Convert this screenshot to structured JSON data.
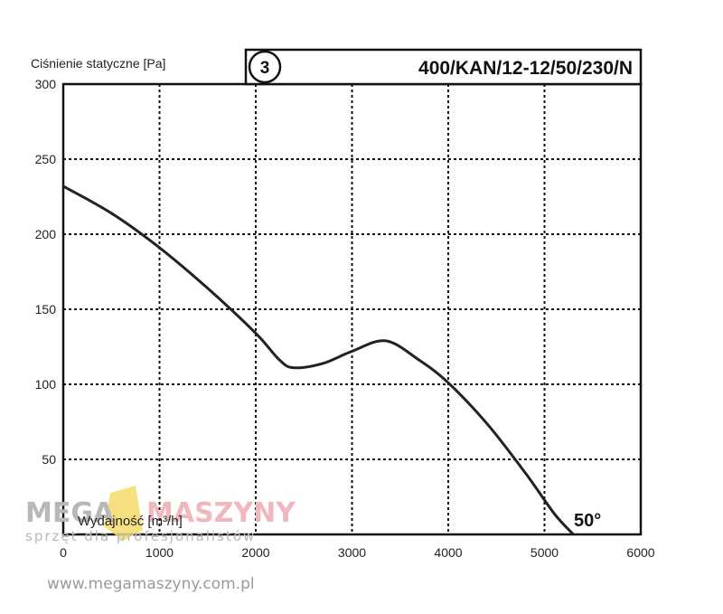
{
  "chart_data": {
    "type": "line",
    "ylabel": "Ciśnienie statyczne [Pa]",
    "xlabel": "Wydajność [m³/h]",
    "curve_number": "3",
    "model": "400/KAN/12-12/50/230/N",
    "temperature_label": "50°",
    "xlim": [
      0,
      6000
    ],
    "ylim": [
      0,
      300
    ],
    "x_ticks": [
      "0",
      "1000",
      "2000",
      "3000",
      "4000",
      "5000",
      "6000"
    ],
    "y_ticks": [
      "50",
      "100",
      "150",
      "200",
      "250",
      "300"
    ],
    "grid": true,
    "series": [
      {
        "x": [
          0,
          500,
          1000,
          1500,
          2000,
          2250,
          2400,
          2700,
          3000,
          3350,
          3700,
          4000,
          4400,
          4800,
          5100,
          5300
        ],
        "y": [
          232,
          214,
          191,
          164,
          134,
          116,
          111,
          114,
          122,
          129,
          116,
          101,
          74,
          41,
          14,
          0
        ]
      }
    ]
  },
  "watermark": {
    "brand_left": "MEGA",
    "brand_right": "MASZYNY",
    "tagline": "sprzęt dla profesjonalistów",
    "url": "www.megamaszyny.com.pl"
  },
  "colors": {
    "curve": "#222222",
    "grid": "#111111",
    "watermark_gray": "#b8b8b8",
    "watermark_pink": "#f0b7bd",
    "watermark_yellow": "#f5da6a"
  }
}
